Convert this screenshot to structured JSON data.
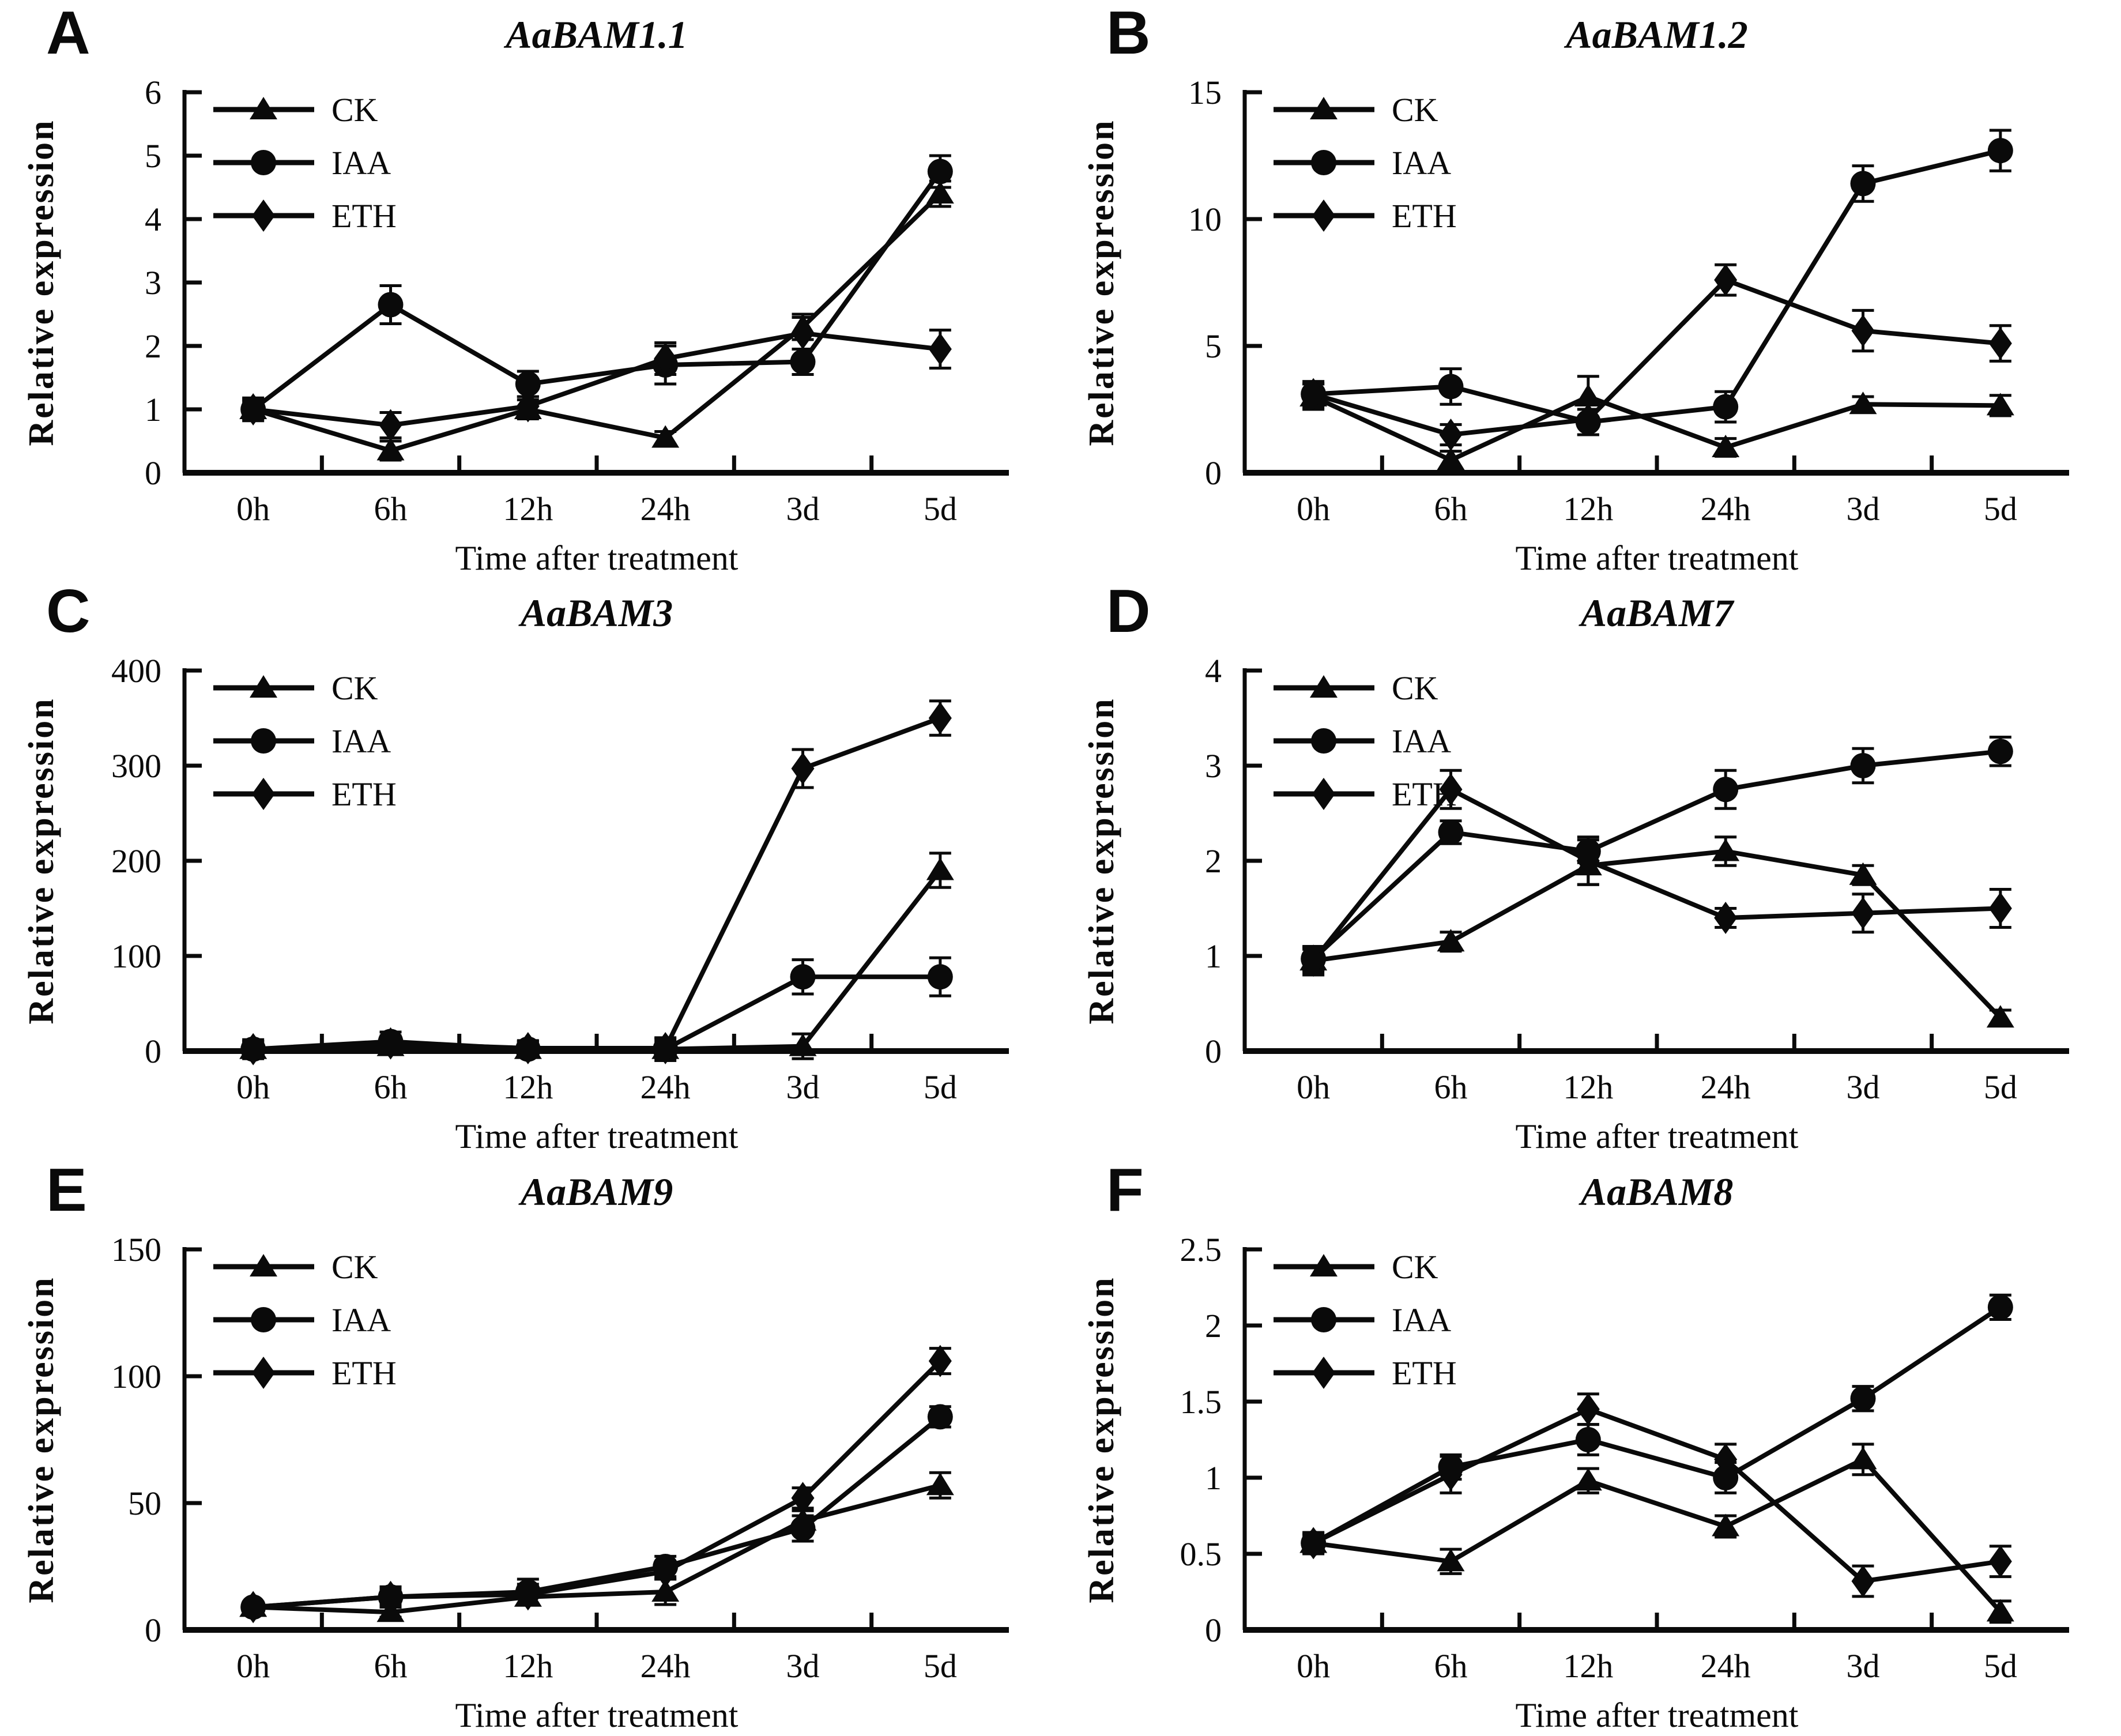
{
  "figure": {
    "background": "#ffffff",
    "ink": "#0a0a0a",
    "xlabel": "Time after treatment",
    "ylabel": "Relative expression",
    "categories": [
      "0h",
      "6h",
      "12h",
      "24h",
      "3d",
      "5d"
    ],
    "legend_position": "top-left",
    "legend_labels": [
      "CK",
      "IAA",
      "ETH"
    ],
    "marker_shapes": {
      "CK": "triangle",
      "IAA": "circle",
      "ETH": "diamond"
    }
  },
  "chart_data": [
    {
      "type": "line",
      "panel": "A",
      "title": "AaBAM1.1",
      "xlabel": "Time after treatment",
      "ylabel": "Relative expression",
      "categories": [
        "0h",
        "6h",
        "12h",
        "24h",
        "3d",
        "5d"
      ],
      "ylim": [
        0,
        6
      ],
      "yticks": [
        0,
        1,
        2,
        3,
        4,
        5,
        6
      ],
      "grid": false,
      "series": [
        {
          "name": "CK",
          "marker": "triangle",
          "values": [
            1.0,
            0.35,
            1.0,
            0.55,
            2.3,
            4.4
          ],
          "errors": [
            0.15,
            0.15,
            0.15,
            0.1,
            0.2,
            0.2
          ]
        },
        {
          "name": "IAA",
          "marker": "circle",
          "values": [
            1.0,
            2.65,
            1.4,
            1.7,
            1.75,
            4.75
          ],
          "errors": [
            0.18,
            0.3,
            0.2,
            0.3,
            0.2,
            0.25
          ]
        },
        {
          "name": "ETH",
          "marker": "diamond",
          "values": [
            1.0,
            0.75,
            1.05,
            1.8,
            2.2,
            1.95
          ],
          "errors": [
            0.12,
            0.2,
            0.15,
            0.25,
            0.25,
            0.3
          ]
        }
      ]
    },
    {
      "type": "line",
      "panel": "B",
      "title": "AaBAM1.2",
      "xlabel": "Time after treatment",
      "ylabel": "Relative expression",
      "categories": [
        "0h",
        "6h",
        "12h",
        "24h",
        "3d",
        "5d"
      ],
      "ylim": [
        0,
        15
      ],
      "yticks": [
        0,
        5,
        10,
        15
      ],
      "grid": false,
      "series": [
        {
          "name": "CK",
          "marker": "triangle",
          "values": [
            3.0,
            0.5,
            3.0,
            1.0,
            2.7,
            2.65
          ],
          "errors": [
            0.5,
            0.35,
            0.8,
            0.35,
            0.3,
            0.4
          ]
        },
        {
          "name": "IAA",
          "marker": "circle",
          "values": [
            3.1,
            3.4,
            2.0,
            2.6,
            11.4,
            12.7
          ],
          "errors": [
            0.5,
            0.7,
            0.5,
            0.6,
            0.7,
            0.8
          ]
        },
        {
          "name": "ETH",
          "marker": "diamond",
          "values": [
            3.1,
            1.5,
            2.1,
            7.6,
            5.6,
            5.1
          ],
          "errors": [
            0.4,
            0.4,
            0.6,
            0.6,
            0.8,
            0.7
          ]
        }
      ]
    },
    {
      "type": "line",
      "panel": "C",
      "title": "AaBAM3",
      "xlabel": "Time after treatment",
      "ylabel": "Relative expression",
      "categories": [
        "0h",
        "6h",
        "12h",
        "24h",
        "3d",
        "5d"
      ],
      "ylim": [
        0,
        400
      ],
      "yticks": [
        0,
        100,
        200,
        300,
        400
      ],
      "grid": false,
      "series": [
        {
          "name": "CK",
          "marker": "triangle",
          "values": [
            2,
            5,
            2,
            2,
            5,
            190
          ],
          "errors": [
            10,
            8,
            8,
            12,
            13,
            18
          ]
        },
        {
          "name": "IAA",
          "marker": "circle",
          "values": [
            2,
            10,
            2,
            2,
            78,
            78
          ],
          "errors": [
            8,
            10,
            8,
            8,
            18,
            20
          ]
        },
        {
          "name": "ETH",
          "marker": "diamond",
          "values": [
            2,
            8,
            3,
            3,
            297,
            350
          ],
          "errors": [
            8,
            8,
            8,
            10,
            20,
            18
          ]
        }
      ]
    },
    {
      "type": "line",
      "panel": "D",
      "title": "AaBAM7",
      "xlabel": "Time after treatment",
      "ylabel": "Relative expression",
      "categories": [
        "0h",
        "6h",
        "12h",
        "24h",
        "3d",
        "5d"
      ],
      "ylim": [
        0,
        4
      ],
      "yticks": [
        0,
        1,
        2,
        3,
        4
      ],
      "grid": false,
      "series": [
        {
          "name": "CK",
          "marker": "triangle",
          "values": [
            0.95,
            1.15,
            1.95,
            2.1,
            1.85,
            0.35
          ],
          "errors": [
            0.12,
            0.1,
            0.2,
            0.15,
            0.1,
            0.08
          ]
        },
        {
          "name": "IAA",
          "marker": "circle",
          "values": [
            0.97,
            2.3,
            2.1,
            2.75,
            3.0,
            3.15
          ],
          "errors": [
            0.12,
            0.12,
            0.12,
            0.2,
            0.18,
            0.15
          ]
        },
        {
          "name": "ETH",
          "marker": "diamond",
          "values": [
            0.95,
            2.75,
            2.0,
            1.4,
            1.45,
            1.5
          ],
          "errors": [
            0.15,
            0.2,
            0.25,
            0.1,
            0.2,
            0.2
          ]
        }
      ]
    },
    {
      "type": "line",
      "panel": "E",
      "title": "AaBAM9",
      "xlabel": "Time after treatment",
      "ylabel": "Relative expression",
      "categories": [
        "0h",
        "6h",
        "12h",
        "24h",
        "3d",
        "5d"
      ],
      "ylim": [
        0,
        150
      ],
      "yticks": [
        0,
        50,
        100,
        150
      ],
      "grid": false,
      "series": [
        {
          "name": "CK",
          "marker": "triangle",
          "values": [
            9,
            7,
            13,
            15,
            43,
            57
          ],
          "errors": [
            2,
            2,
            3,
            5,
            4,
            5
          ]
        },
        {
          "name": "IAA",
          "marker": "circle",
          "values": [
            9,
            13,
            15,
            25,
            40,
            84
          ],
          "errors": [
            2,
            4,
            5,
            4,
            5,
            4
          ]
        },
        {
          "name": "ETH",
          "marker": "diamond",
          "values": [
            9,
            13,
            14,
            23,
            52,
            106
          ],
          "errors": [
            2,
            3,
            4,
            3,
            4,
            5
          ]
        }
      ]
    },
    {
      "type": "line",
      "panel": "F",
      "title": "AaBAM8",
      "xlabel": "Time after treatment",
      "ylabel": "Relative expression",
      "categories": [
        "0h",
        "6h",
        "12h",
        "24h",
        "3d",
        "5d"
      ],
      "ylim": [
        0,
        2.5
      ],
      "yticks": [
        0,
        0.5,
        1,
        1.5,
        2,
        2.5
      ],
      "grid": false,
      "series": [
        {
          "name": "CK",
          "marker": "triangle",
          "values": [
            0.57,
            0.45,
            0.98,
            0.68,
            1.12,
            0.12
          ],
          "errors": [
            0.05,
            0.08,
            0.08,
            0.07,
            0.1,
            0.07
          ]
        },
        {
          "name": "IAA",
          "marker": "circle",
          "values": [
            0.57,
            1.07,
            1.25,
            1.0,
            1.52,
            2.12
          ],
          "errors": [
            0.07,
            0.08,
            0.1,
            0.1,
            0.08,
            0.08
          ]
        },
        {
          "name": "ETH",
          "marker": "diamond",
          "values": [
            0.57,
            1.02,
            1.45,
            1.12,
            0.32,
            0.45
          ],
          "errors": [
            0.06,
            0.12,
            0.1,
            0.1,
            0.1,
            0.1
          ]
        }
      ]
    }
  ]
}
